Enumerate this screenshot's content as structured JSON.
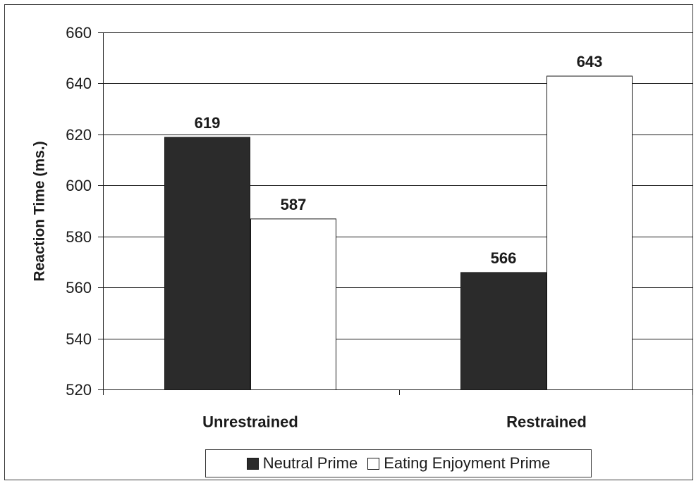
{
  "colors": {
    "neutral_fill": "#2b2b2b",
    "eating_fill": "#ffffff",
    "bar_stroke": "#1a1a1a",
    "grid": "#1a1a1a"
  },
  "legend": {
    "position": "bottom",
    "items": [
      "Neutral Prime",
      "Eating Enjoyment Prime"
    ]
  },
  "chart_data": {
    "type": "bar",
    "title": "",
    "xlabel": "",
    "ylabel": "Reaction Time (ms.)",
    "ylim": [
      520,
      660
    ],
    "yticks": [
      "520",
      "540",
      "560",
      "580",
      "600",
      "620",
      "640",
      "660"
    ],
    "grid": true,
    "categories": [
      "Unrestrained",
      "Restrained"
    ],
    "series": [
      {
        "name": "Neutral Prime",
        "values": [
          619,
          566
        ]
      },
      {
        "name": "Eating Enjoyment Prime",
        "values": [
          587,
          643
        ]
      }
    ],
    "data_labels": [
      [
        "619",
        "566"
      ],
      [
        "587",
        "643"
      ]
    ]
  }
}
